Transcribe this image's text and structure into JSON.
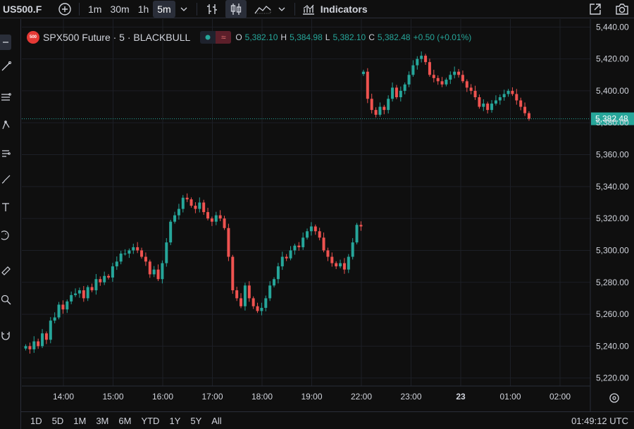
{
  "toolbar": {
    "symbol": "US500.F",
    "timeframes": [
      "1m",
      "30m",
      "1h",
      "5m"
    ],
    "active_timeframe": "5m",
    "indicators_label": "Indicators"
  },
  "legend": {
    "badge": "500",
    "title": "SPX500 Future · 5 · BLACKBULL",
    "open_key": "O",
    "open": "5,382.10",
    "high_key": "H",
    "high": "5,384.98",
    "low_key": "L",
    "low": "5,382.10",
    "close_key": "C",
    "close": "5,382.48",
    "change": "+0.50 (+0.01%)"
  },
  "bottom": {
    "ranges": [
      "1D",
      "5D",
      "1M",
      "3M",
      "6M",
      "YTD",
      "1Y",
      "5Y",
      "All"
    ],
    "clock": "01:49:12 UTC"
  },
  "colors": {
    "up": "#26a69a",
    "down": "#ef5350",
    "last_price_bg": "#26a69a"
  },
  "chart_data": {
    "type": "candlestick",
    "title": "SPX500 Future · 5 · BLACKBULL",
    "ylim": [
      5215,
      5445
    ],
    "y_ticks": [
      5440,
      5420,
      5400,
      5380,
      5360,
      5340,
      5320,
      5300,
      5280,
      5260,
      5240,
      5220
    ],
    "y_tick_labels": [
      "5,440.00",
      "5,420.00",
      "5,400.00",
      "5,380.00",
      "5,360.00",
      "5,340.00",
      "5,320.00",
      "5,300.00",
      "5,280.00",
      "5,260.00",
      "5,240.00",
      "5,220.00"
    ],
    "x_ticks": [
      {
        "label": "14:00",
        "hour": 14
      },
      {
        "label": "15:00",
        "hour": 15
      },
      {
        "label": "16:00",
        "hour": 16
      },
      {
        "label": "17:00",
        "hour": 17
      },
      {
        "label": "18:00",
        "hour": 18
      },
      {
        "label": "19:00",
        "hour": 19
      },
      {
        "label": "22:00",
        "hour": 20
      },
      {
        "label": "23:00",
        "hour": 21
      },
      {
        "label": "23",
        "hour": 22
      },
      {
        "label": "01:00",
        "hour": 23
      },
      {
        "label": "02:00",
        "hour": 24
      }
    ],
    "bar_minutes": 5,
    "last_price": 5382.48,
    "last_price_label": "5,382.48",
    "session1_start_hour": 13.2,
    "session1_closes": [
      5240,
      5238,
      5243,
      5240,
      5248,
      5244,
      5256,
      5258,
      5266,
      5263,
      5268,
      5272,
      5273,
      5275,
      5270,
      5277,
      5275,
      5282,
      5280,
      5284,
      5283,
      5290,
      5293,
      5298,
      5298,
      5300,
      5302,
      5300,
      5296,
      5293,
      5285,
      5288,
      5282,
      5292,
      5305,
      5318,
      5322,
      5326,
      5333,
      5332,
      5328,
      5326,
      5330,
      5324,
      5320,
      5318,
      5322,
      5320,
      5314,
      5296,
      5275,
      5270,
      5265,
      5278,
      5270,
      5265,
      5262,
      5264,
      5270,
      5278,
      5282,
      5290,
      5296,
      5295,
      5300,
      5303,
      5302,
      5308,
      5312,
      5315,
      5312,
      5308,
      5300,
      5296,
      5292,
      5290,
      5292,
      5288,
      5296,
      5305,
      5316,
      5315
    ],
    "session2_start_hour": 20,
    "session2_closes": [
      5412,
      5395,
      5388,
      5385,
      5390,
      5388,
      5395,
      5402,
      5396,
      5400,
      5404,
      5410,
      5416,
      5420,
      5422,
      5418,
      5410,
      5408,
      5406,
      5404,
      5407,
      5410,
      5412,
      5410,
      5406,
      5402,
      5400,
      5396,
      5390,
      5392,
      5388,
      5392,
      5394,
      5396,
      5398,
      5400,
      5398,
      5394,
      5390,
      5386,
      5382.48
    ]
  }
}
